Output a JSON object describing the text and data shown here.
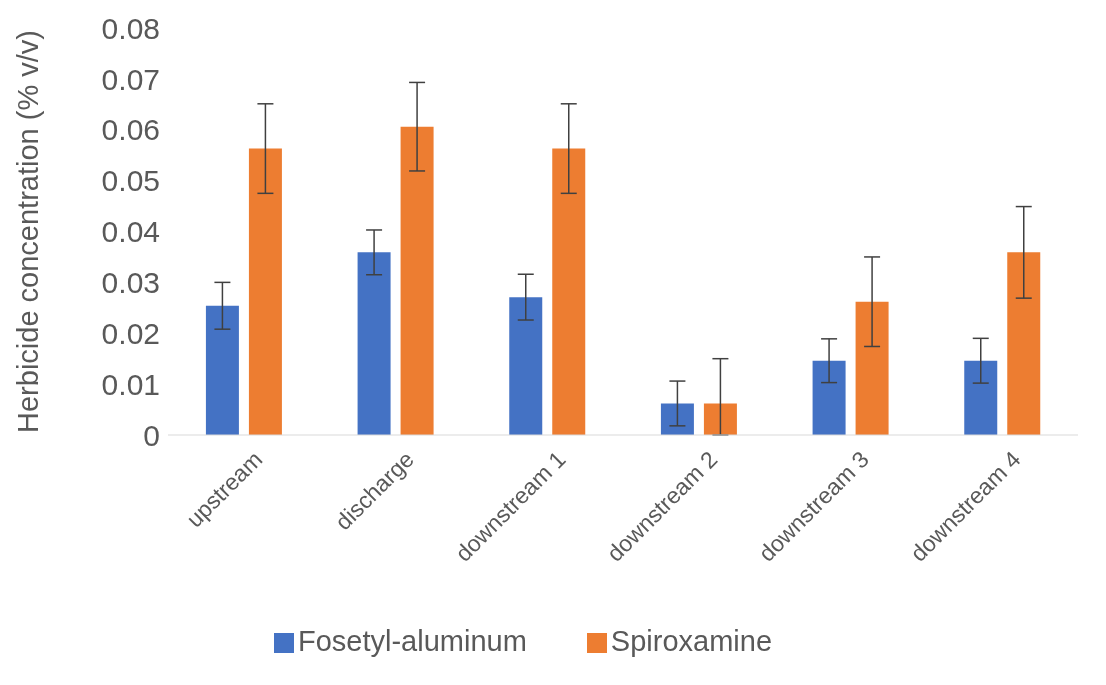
{
  "chart_data": {
    "type": "bar",
    "ylabel": "Herbicide concentration (% v/v)",
    "categories": [
      "upstream",
      "discharge",
      "downstream 1",
      "downstream 2",
      "downstream 3",
      "downstream 4"
    ],
    "series": [
      {
        "name": "Fosetyl-aluminum",
        "color": "#4472c4",
        "values": [
          0.0254,
          0.0359,
          0.0271,
          0.0062,
          0.0146,
          0.0146
        ],
        "errors": [
          0.0046,
          0.0044,
          0.0045,
          0.0044,
          0.0043,
          0.0044
        ]
      },
      {
        "name": "Spiroxamine",
        "color": "#ed7d31",
        "values": [
          0.0563,
          0.0606,
          0.0563,
          0.0062,
          0.0262,
          0.0359
        ],
        "errors": [
          0.0088,
          0.0087,
          0.0088,
          [
            0,
            0.015
          ],
          0.0088,
          0.009
        ]
      }
    ],
    "ylim": [
      0,
      0.08
    ],
    "yticks": [
      0,
      0.01,
      0.02,
      0.03,
      0.04,
      0.05,
      0.06,
      0.07,
      0.08
    ],
    "grid": false,
    "legend": "bottom"
  }
}
